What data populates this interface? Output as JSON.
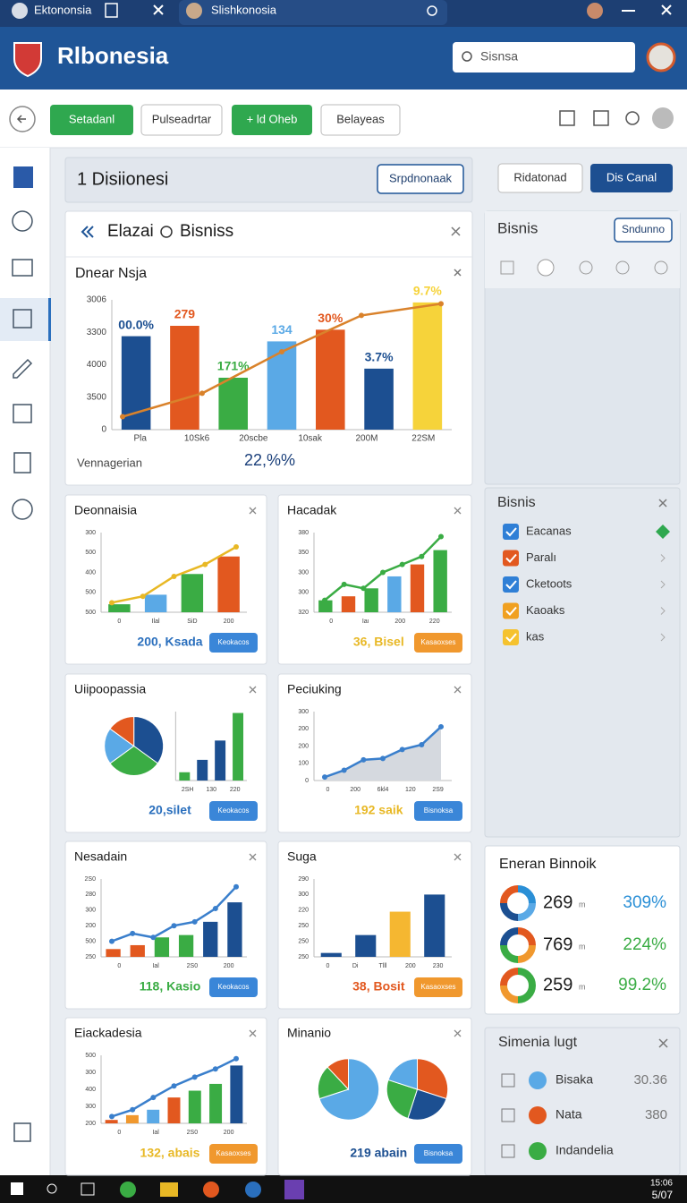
{
  "tabs": [
    "Ektononsia",
    "Slishkonosia"
  ],
  "app_title": "Rlbonesia",
  "search": "Sisnsa",
  "toolbar": [
    "Setadanl",
    "Pulseadrtar",
    "+ ld Oheb",
    "Belayeas"
  ],
  "section": {
    "title": "1 Disiionesi",
    "button": "Srpdnonaak"
  },
  "right_buttons": [
    "Ridatonad",
    "Dis Canal"
  ],
  "main_panel": {
    "tabs": [
      "Elazai",
      "Bisniss"
    ],
    "chart": {
      "title": "Dnear Nsja",
      "ylim": [
        0,
        100
      ],
      "ylabels": [
        "3006",
        "3300",
        "4000",
        "3500",
        "0"
      ],
      "xlabels": [
        "Pla",
        "10Sk6",
        "20scbe",
        "10sak",
        "200M",
        "22SM"
      ],
      "bars": {
        "values": [
          72,
          80,
          40,
          68,
          77,
          47,
          98
        ],
        "colors": [
          "#1c4f91",
          "#e2581f",
          "#3aac44",
          "#5aa9e6",
          "#e2581f",
          "#1c4f91",
          "#f6d33a"
        ]
      },
      "bar_labels": [
        "00.0%",
        "279",
        "171%",
        "134",
        "30%",
        "3.7%",
        "9.7%"
      ],
      "line": {
        "values": [
          10,
          28,
          60,
          88,
          97
        ],
        "color": "#d9822b"
      },
      "footer_label": "Vennagerian",
      "footer_value": "22,%%"
    }
  },
  "cards": [
    {
      "title": "Deonnaisia",
      "ylim": [
        0,
        100
      ],
      "ylabels": [
        "300",
        "500",
        "400",
        "500",
        "500"
      ],
      "xlabels": [
        "0",
        "Ilal",
        "SiD",
        "200"
      ],
      "bars": {
        "values": [
          10,
          22,
          48,
          70
        ],
        "colors": [
          "#3aac44",
          "#5aa9e6",
          "#3aac44",
          "#e2581f"
        ]
      },
      "line": {
        "values": [
          12,
          20,
          45,
          60,
          82
        ],
        "color": "#e8b825"
      },
      "footer": "200, Ksada",
      "footer_color": "#2a6fbd",
      "button": "Keokacos",
      "button_color": "#3a86d8"
    },
    {
      "title": "Hacadak",
      "ylim": [
        0,
        100
      ],
      "ylabels": [
        "380",
        "350",
        "300",
        "300",
        "320"
      ],
      "xlabels": [
        "0",
        "Iaı",
        "200",
        "220"
      ],
      "bars": {
        "values": [
          15,
          20,
          30,
          45,
          60,
          78
        ],
        "colors": [
          "#3aac44",
          "#e2581f",
          "#3aac44",
          "#5aa9e6",
          "#e2581f",
          "#3aac44"
        ]
      },
      "line": {
        "values": [
          15,
          35,
          30,
          50,
          60,
          70,
          95
        ],
        "color": "#3aac44"
      },
      "footer": "36, Bisel",
      "footer_color": "#e8b825",
      "button": "Kasaoxses",
      "button_color": "#f0982e"
    },
    {
      "title": "Uiipoopassia",
      "ylim": [
        0,
        100
      ],
      "ylabels": [],
      "xlabels": [
        "2SH",
        "130",
        "220"
      ],
      "pies": [
        {
          "values": [
            35,
            30,
            20,
            15
          ],
          "colors": [
            "#1c4f91",
            "#3aac44",
            "#5aa9e6",
            "#e2581f"
          ]
        }
      ],
      "bars": {
        "values": [
          12,
          30,
          58,
          98
        ],
        "colors": [
          "#3aac44",
          "#1c4f91",
          "#1c4f91",
          "#3aac44"
        ]
      },
      "footer": "20,silet",
      "footer_color": "#2a6fbd",
      "button": "Keokacos",
      "button_color": "#3a86d8"
    },
    {
      "title": "Peciuking",
      "ylim": [
        0,
        100
      ],
      "ylabels": [
        "300",
        "200",
        "200",
        "100",
        "0"
      ],
      "xlabels": [
        "0",
        "200",
        "6kl4",
        "120",
        "2S9"
      ],
      "line": {
        "values": [
          5,
          15,
          30,
          32,
          45,
          52,
          78
        ],
        "color": "#3a7fcc"
      },
      "area": true,
      "footer": "192 saik",
      "footer_color": "#e8b825",
      "button": "Bisnoksa",
      "button_color": "#3a86d8"
    },
    {
      "title": "Nesadain",
      "ylim": [
        0,
        100
      ],
      "ylabels": [
        "2S0",
        "280",
        "300",
        "200",
        "500",
        "250"
      ],
      "xlabels": [
        "0",
        "Ial",
        "2S0",
        "200"
      ],
      "bars": {
        "values": [
          10,
          15,
          25,
          28,
          45,
          70
        ],
        "colors": [
          "#e2581f",
          "#e2581f",
          "#3aac44",
          "#3aac44",
          "#1c4f91",
          "#1c4f91"
        ]
      },
      "line": {
        "values": [
          20,
          30,
          25,
          40,
          45,
          62,
          90
        ],
        "color": "#3a7fcc"
      },
      "footer": "118, Kasio",
      "footer_color": "#3aac44",
      "button": "Keokacos",
      "button_color": "#3a86d8"
    },
    {
      "title": "Suga",
      "ylim": [
        0,
        100
      ],
      "ylabels": [
        "290",
        "300",
        "220",
        "250",
        "250",
        "250"
      ],
      "xlabels": [
        "0",
        "Di",
        "Tlll",
        "200",
        "230"
      ],
      "bars": {
        "values": [
          5,
          28,
          58,
          80
        ],
        "colors": [
          "#1c4f91",
          "#1c4f91",
          "#f5b731",
          "#1c4f91"
        ]
      },
      "footer": "38, Bosit",
      "footer_color": "#e2581f",
      "button": "Kasaoxses",
      "button_color": "#f0982e"
    },
    {
      "title": "Eiackadesia",
      "ylim": [
        0,
        100
      ],
      "ylabels": [
        "500",
        "300",
        "400",
        "300",
        "200"
      ],
      "xlabels": [
        "0",
        "Ial",
        "2S0",
        "200"
      ],
      "bars": {
        "values": [
          5,
          12,
          20,
          38,
          48,
          58,
          85
        ],
        "colors": [
          "#e2581f",
          "#f0982e",
          "#5aa9e6",
          "#e2581f",
          "#3aac44",
          "#3aac44",
          "#1c4f91"
        ]
      },
      "line": {
        "values": [
          10,
          20,
          38,
          55,
          68,
          80,
          95
        ],
        "color": "#3a7fcc"
      },
      "footer": "132, abais",
      "footer_color": "#e8b825",
      "button": "Kasaoxses",
      "button_color": "#f0982e"
    },
    {
      "title": "Minanio",
      "ylim": [
        0,
        100
      ],
      "ylabels": [],
      "xlabels": [],
      "pies": [
        {
          "values": [
            70,
            18,
            12
          ],
          "colors": [
            "#5aa9e6",
            "#3aac44",
            "#e2581f"
          ]
        },
        {
          "values": [
            30,
            25,
            25,
            20
          ],
          "colors": [
            "#e2581f",
            "#1c4f91",
            "#3aac44",
            "#5aa9e6"
          ]
        }
      ],
      "footer": "219 abain",
      "footer_color": "#1c4f91",
      "button": "Bisnoksa",
      "button_color": "#3a86d8"
    }
  ],
  "bisnis_panel": {
    "title": "Bisnis",
    "button": "Sndunno"
  },
  "list_panel": {
    "title": "Bisnis",
    "items": [
      {
        "label": "Eacanas",
        "color": "#2f7fd6"
      },
      {
        "label": "Paralı",
        "color": "#e2581f"
      },
      {
        "label": "Cketoots",
        "color": "#2f7fd6"
      },
      {
        "label": "Kaoaks",
        "color": "#f0a020"
      },
      {
        "label": "kas",
        "color": "#f5c22e"
      }
    ]
  },
  "summary": {
    "title": "Eneran Binnoik",
    "rows": [
      {
        "value": "269",
        "unit": "m",
        "percent": "309%",
        "color": "#2a8fd6"
      },
      {
        "value": "769",
        "unit": "m",
        "percent": "224%",
        "color": "#3aac44"
      },
      {
        "value": "259",
        "unit": "m",
        "percent": "99.2%",
        "color": "#3aac44"
      }
    ]
  },
  "bottom_panel": {
    "title": "Simenia lugt",
    "rows": [
      {
        "label": "Bisaka",
        "value": "30.36"
      },
      {
        "label": "Nata",
        "value": "380"
      },
      {
        "label": "Indandelia"
      }
    ]
  },
  "clock": [
    "15:06",
    "5/07"
  ]
}
